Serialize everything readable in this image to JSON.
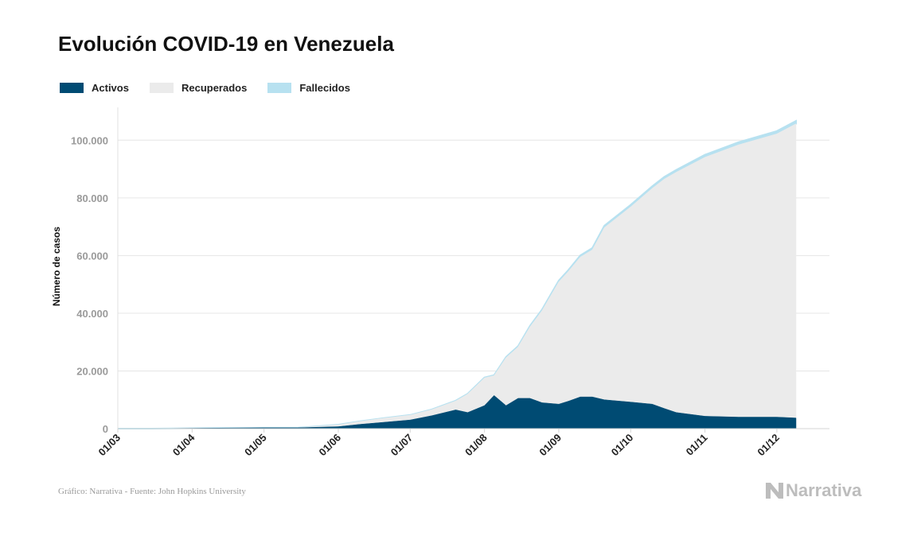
{
  "title": "Evolución COVID-19 en Venezuela",
  "legend": [
    {
      "label": "Activos",
      "color": "#004b73"
    },
    {
      "label": "Recuperados",
      "color": "#ebebeb"
    },
    {
      "label": "Fallecidos",
      "color": "#b7e1f0"
    }
  ],
  "footer": {
    "source": "Gráfico: Narrativa - Fuente: John Hopkins University",
    "brand": "Narrativa"
  },
  "chart_data": {
    "type": "area",
    "stacked": true,
    "ylabel": "Número de casos",
    "ylim": [
      0,
      110000
    ],
    "yticks": [
      {
        "value": 0,
        "label": "0"
      },
      {
        "value": 20000,
        "label": "20.000"
      },
      {
        "value": 40000,
        "label": "40.000"
      },
      {
        "value": 60000,
        "label": "60.000"
      },
      {
        "value": 80000,
        "label": "80.000"
      },
      {
        "value": 100000,
        "label": "100.000"
      }
    ],
    "xlim": [
      "2020-03-01",
      "2020-12-09"
    ],
    "xticks": [
      {
        "date": "2020-03-01",
        "label": "01/03"
      },
      {
        "date": "2020-04-01",
        "label": "01/04"
      },
      {
        "date": "2020-05-01",
        "label": "01/05"
      },
      {
        "date": "2020-06-01",
        "label": "01/06"
      },
      {
        "date": "2020-07-01",
        "label": "01/07"
      },
      {
        "date": "2020-08-01",
        "label": "01/08"
      },
      {
        "date": "2020-09-01",
        "label": "01/09"
      },
      {
        "date": "2020-10-01",
        "label": "01/10"
      },
      {
        "date": "2020-11-01",
        "label": "01/11"
      },
      {
        "date": "2020-12-01",
        "label": "01/12"
      }
    ],
    "grid": true,
    "legend_position": "top-left",
    "x": [
      "2020-03-01",
      "2020-03-15",
      "2020-04-01",
      "2020-04-15",
      "2020-05-01",
      "2020-05-15",
      "2020-06-01",
      "2020-06-10",
      "2020-06-20",
      "2020-07-01",
      "2020-07-10",
      "2020-07-20",
      "2020-07-25",
      "2020-08-01",
      "2020-08-05",
      "2020-08-10",
      "2020-08-15",
      "2020-08-20",
      "2020-08-25",
      "2020-09-01",
      "2020-09-05",
      "2020-09-10",
      "2020-09-15",
      "2020-09-20",
      "2020-10-01",
      "2020-10-10",
      "2020-10-15",
      "2020-10-20",
      "2020-11-01",
      "2020-11-15",
      "2020-12-01",
      "2020-12-09"
    ],
    "series": [
      {
        "name": "Activos",
        "values": [
          0,
          0,
          140,
          230,
          300,
          300,
          700,
          1500,
          2200,
          3000,
          4500,
          6500,
          5600,
          8000,
          11500,
          8000,
          10500,
          10500,
          9000,
          8500,
          9500,
          11000,
          11000,
          10000,
          9200,
          8500,
          7000,
          5600,
          4300,
          4000,
          4000,
          3700
        ]
      },
      {
        "name": "Recuperados",
        "values": [
          0,
          0,
          0,
          0,
          0,
          0,
          650,
          1000,
          1400,
          1700,
          2100,
          3100,
          6400,
          9600,
          6900,
          16600,
          17800,
          24800,
          31900,
          42400,
          45000,
          48500,
          51000,
          59700,
          67700,
          74800,
          79500,
          83300,
          89800,
          94400,
          98200,
          102000
        ]
      },
      {
        "name": "Fallecidos",
        "values": [
          0,
          0,
          0,
          10,
          10,
          10,
          20,
          30,
          40,
          50,
          70,
          100,
          110,
          130,
          150,
          250,
          300,
          350,
          400,
          450,
          500,
          550,
          600,
          650,
          700,
          750,
          780,
          800,
          850,
          900,
          950,
          980
        ]
      }
    ]
  }
}
